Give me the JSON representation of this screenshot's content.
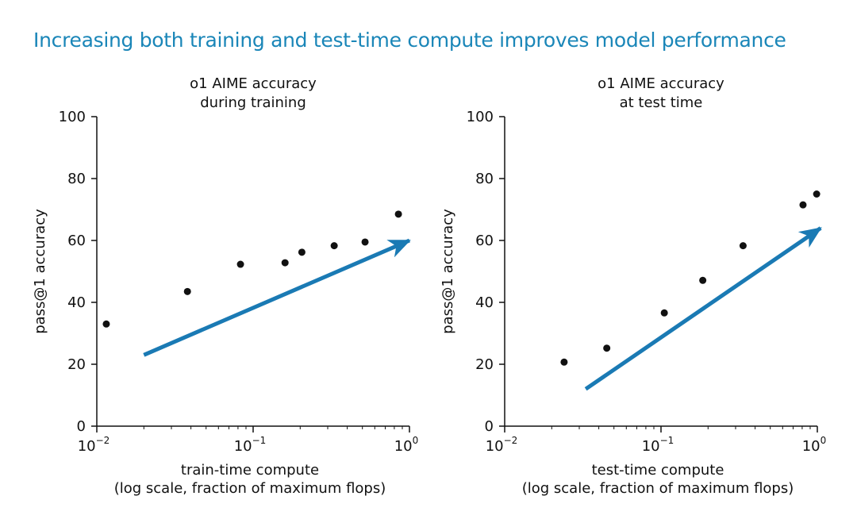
{
  "headline": "Increasing both training and test-time compute improves model performance",
  "colors": {
    "headline": "#1a86b8",
    "arrow": "#1a7ab4",
    "points": "#111111"
  },
  "chart_data": [
    {
      "type": "scatter",
      "title": [
        "o1 AIME accuracy",
        "during training"
      ],
      "xlabel": [
        "train-time compute",
        "(log scale, fraction of maximum flops)"
      ],
      "ylabel": "pass@1 accuracy",
      "xscale": "log",
      "xlim": [
        0.01,
        1
      ],
      "ylim": [
        0,
        100
      ],
      "yticks": [
        "0",
        "20",
        "40",
        "60",
        "80",
        "100"
      ],
      "xticks": [
        {
          "base": "10",
          "exp": "−2"
        },
        {
          "base": "10",
          "exp": "−1"
        },
        {
          "base": "10",
          "exp": "0"
        }
      ],
      "points": [
        {
          "x": 0.0115,
          "y": 33
        },
        {
          "x": 0.038,
          "y": 43.5
        },
        {
          "x": 0.083,
          "y": 52.3
        },
        {
          "x": 0.16,
          "y": 52.8
        },
        {
          "x": 0.205,
          "y": 56.2
        },
        {
          "x": 0.33,
          "y": 58.3
        },
        {
          "x": 0.52,
          "y": 59.5
        },
        {
          "x": 0.85,
          "y": 68.5
        }
      ],
      "trend_arrow": {
        "from": {
          "x": 0.02,
          "y": 23
        },
        "to": {
          "x": 1.0,
          "y": 60
        }
      }
    },
    {
      "type": "scatter",
      "title": [
        "o1 AIME accuracy",
        "at test time"
      ],
      "xlabel": [
        "test-time compute",
        "(log scale, fraction of maximum flops)"
      ],
      "ylabel": "pass@1 accuracy",
      "xscale": "log",
      "xlim": [
        0.01,
        1
      ],
      "ylim": [
        0,
        100
      ],
      "yticks": [
        "0",
        "20",
        "40",
        "60",
        "80",
        "100"
      ],
      "xticks": [
        {
          "base": "10",
          "exp": "−2"
        },
        {
          "base": "10",
          "exp": "−1"
        },
        {
          "base": "10",
          "exp": "0"
        }
      ],
      "points": [
        {
          "x": 0.024,
          "y": 20.7
        },
        {
          "x": 0.045,
          "y": 25.2
        },
        {
          "x": 0.105,
          "y": 36.6
        },
        {
          "x": 0.185,
          "y": 47.1
        },
        {
          "x": 0.335,
          "y": 58.3
        },
        {
          "x": 0.81,
          "y": 71.5
        },
        {
          "x": 0.99,
          "y": 75
        }
      ],
      "trend_arrow": {
        "from": {
          "x": 0.033,
          "y": 12
        },
        "to": {
          "x": 1.05,
          "y": 64
        }
      }
    }
  ]
}
